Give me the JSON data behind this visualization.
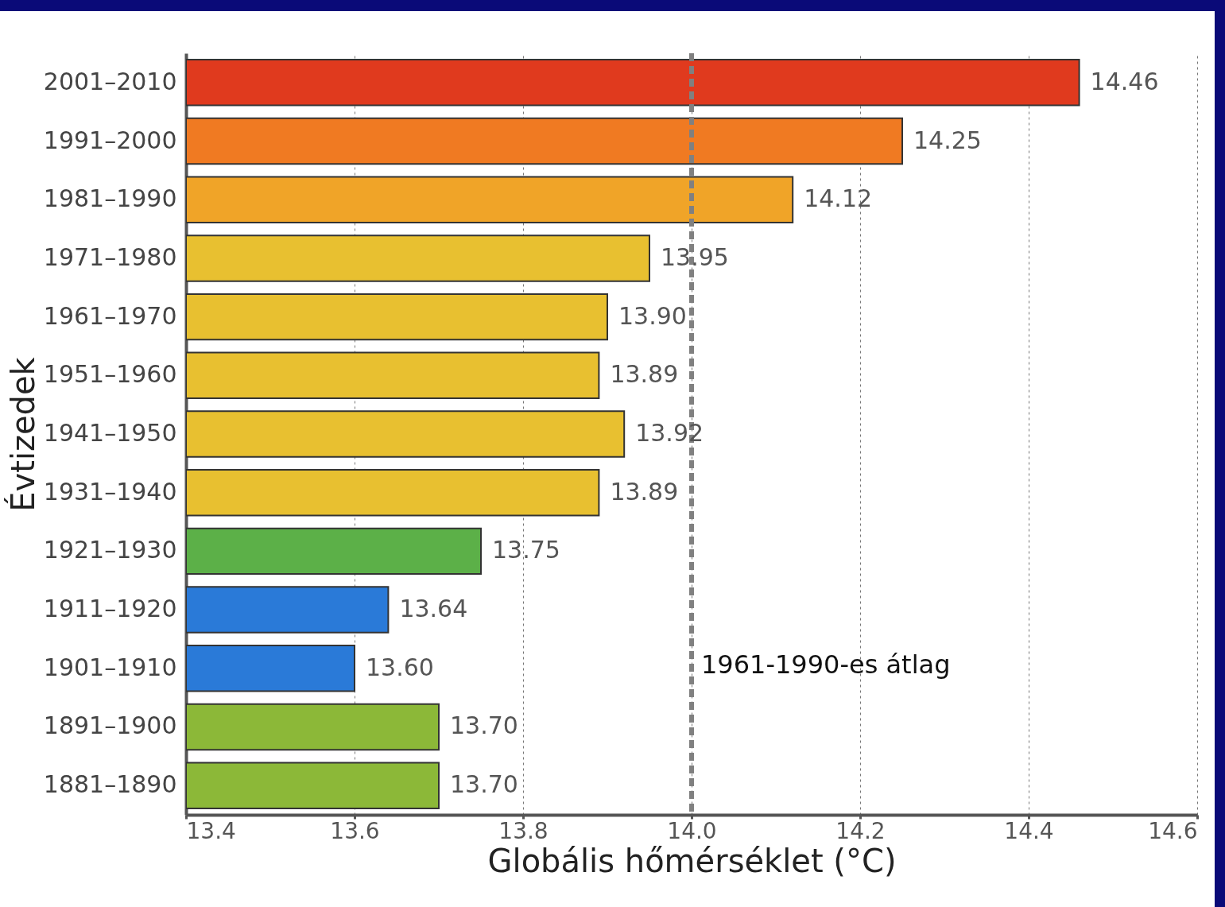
{
  "chart_data": {
    "type": "bar",
    "orientation": "horizontal",
    "xlabel": "Globális hőmérséklet (°C)",
    "ylabel": "Évtizedek",
    "categories": [
      "2001–2010",
      "1991–2000",
      "1981–1990",
      "1971–1980",
      "1961–1970",
      "1951–1960",
      "1941–1950",
      "1931–1940",
      "1921–1930",
      "1911–1920",
      "1901–1910",
      "1891–1900",
      "1881–1890"
    ],
    "values": [
      14.46,
      14.25,
      14.12,
      13.95,
      13.9,
      13.89,
      13.92,
      13.89,
      13.75,
      13.64,
      13.6,
      13.7,
      13.7
    ],
    "value_labels": [
      "14.46",
      "14.25",
      "14.12",
      "13.95",
      "13.90",
      "13.89",
      "13.92",
      "13.89",
      "13.75",
      "13.64",
      "13.60",
      "13.70",
      "13.70"
    ],
    "colors": [
      "#e03a1e",
      "#f07a22",
      "#f0a428",
      "#e8c030",
      "#e8c030",
      "#e8c030",
      "#e8c030",
      "#e8c030",
      "#5cb048",
      "#2a7ad8",
      "#2a7ad8",
      "#8cb838",
      "#8cb838"
    ],
    "xlim": [
      13.4,
      14.6
    ],
    "xticks": [
      13.4,
      13.6,
      13.8,
      {
        "value": 14,
        "label": "14.0"
      },
      14.2,
      14.4,
      14.6
    ],
    "grid": "x",
    "ref_lines": [
      {
        "axis": "x",
        "value": 14.0,
        "label": "1961-1990-es átlag",
        "color": "#808080",
        "line_style": "dashed"
      }
    ]
  }
}
